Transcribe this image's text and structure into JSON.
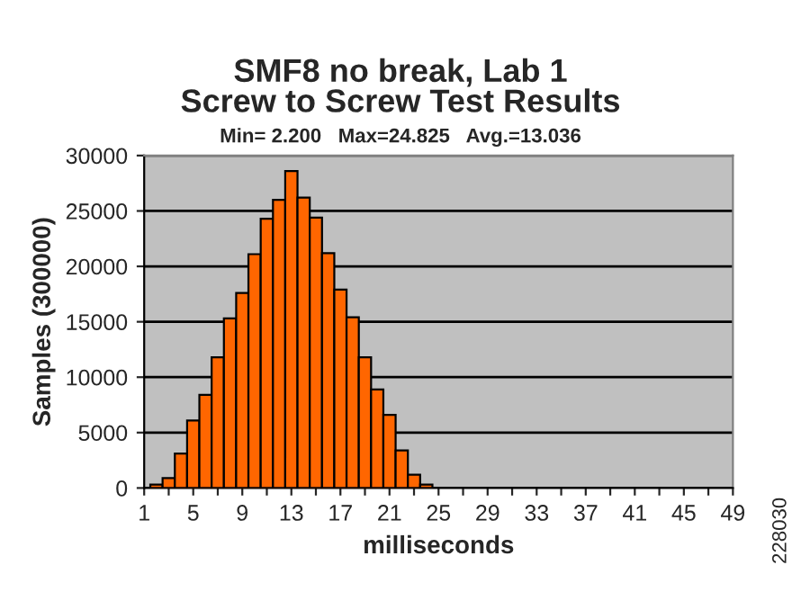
{
  "chart_data": {
    "type": "histogram",
    "title": "SMF8 no break, Lab 1\nScrew to Screw Test Results",
    "subtitle": "Min= 2.200   Max=24.825   Avg.=13.036",
    "xlabel": "milliseconds",
    "ylabel": "Samples (300000)",
    "bins": [
      1.5,
      2.5,
      3.5,
      4.5,
      5.5,
      6.5,
      7.5,
      8.5,
      9.5,
      10.5,
      11.5,
      12.5,
      13.5,
      14.5,
      15.5,
      16.5,
      17.5,
      18.5,
      19.5,
      20.5,
      21.5,
      22.5,
      23.5,
      24.5
    ],
    "values": [
      300,
      900,
      3100,
      6100,
      8400,
      11800,
      15300,
      17600,
      21100,
      24300,
      26000,
      28600,
      26200,
      24400,
      21200,
      17900,
      15400,
      11800,
      8900,
      6600,
      3400,
      1200,
      300
    ],
    "color": "#ff6600",
    "xlim": [
      1,
      49
    ],
    "xticks": [
      1,
      {
        "value": 3,
        "label": null
      },
      5,
      {
        "value": 7,
        "label": null
      },
      9,
      {
        "value": 11,
        "label": null
      },
      13,
      {
        "value": 15,
        "label": null
      },
      17,
      {
        "value": 19,
        "label": null
      },
      21,
      {
        "value": 23,
        "label": null
      },
      25,
      {
        "value": 27,
        "label": null
      },
      29,
      {
        "value": 31,
        "label": null
      },
      33,
      {
        "value": 35,
        "label": null
      },
      37,
      {
        "value": 39,
        "label": null
      },
      41,
      {
        "value": 43,
        "label": null
      },
      45,
      {
        "value": 47,
        "label": null
      },
      49
    ],
    "ylim": [
      0,
      30000
    ],
    "yticks": [
      0,
      5000,
      10000,
      15000,
      20000,
      25000,
      30000
    ],
    "grid": "y",
    "annotations": [
      "228030"
    ]
  }
}
